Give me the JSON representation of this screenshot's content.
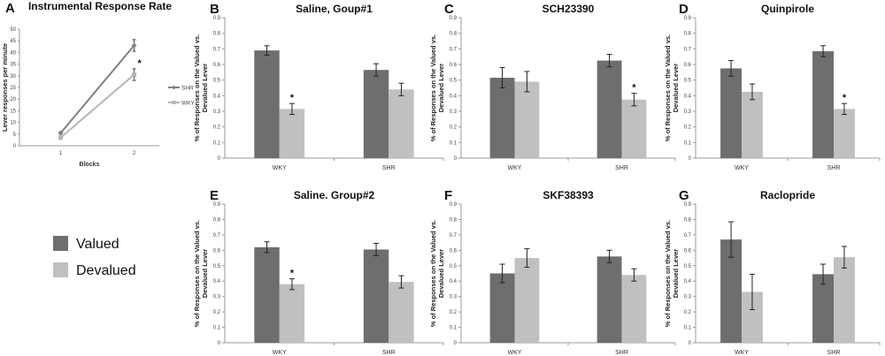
{
  "colors": {
    "valued": "#6e6e6e",
    "devalued": "#c0c0c0",
    "shr_line": "#808080",
    "wky_line": "#b5b5b5",
    "axis": "#999999"
  },
  "legend": {
    "valued": "Valued",
    "devalued": "Devalued"
  },
  "chart_data": [
    {
      "panel": "A",
      "type": "line",
      "title": "Instrumental Response Rate",
      "xlabel": "Blocks",
      "ylabel": "Lever responses per minute",
      "x": [
        "1",
        "2"
      ],
      "ylim": [
        0,
        50
      ],
      "yticks": [
        "0",
        "5",
        "10",
        "15",
        "20",
        "25",
        "30",
        "35",
        "40",
        "45",
        "50"
      ],
      "series": [
        {
          "name": "SHR",
          "values": [
            5.5,
            43
          ],
          "errors": [
            0.5,
            2.5
          ]
        },
        {
          "name": "WKY",
          "values": [
            3.5,
            30.5
          ],
          "errors": [
            0.5,
            2.5
          ]
        }
      ],
      "annotations": [
        {
          "x": "2",
          "text": "*"
        }
      ]
    },
    {
      "panel": "B",
      "type": "bar",
      "title": "Saline, Goup#1",
      "ylabel": "% of Responses on the Valued vs. Devalued Lever",
      "categories": [
        "WKY",
        "SHR"
      ],
      "ylim": [
        0,
        0.9
      ],
      "yticks": [
        "0",
        "0.1",
        "0.2",
        "0.3",
        "0.4",
        "0.5",
        "0.6",
        "0.7",
        "0.8",
        "0.9"
      ],
      "series": [
        {
          "name": "Valued",
          "values": [
            0.69,
            0.565
          ],
          "errors": [
            0.03,
            0.04
          ]
        },
        {
          "name": "Devalued",
          "values": [
            0.315,
            0.44
          ],
          "errors": [
            0.035,
            0.04
          ]
        }
      ],
      "annotations": [
        {
          "category": "WKY",
          "series": "Devalued",
          "text": "*"
        }
      ]
    },
    {
      "panel": "C",
      "type": "bar",
      "title": "SCH23390",
      "ylabel": "% of Responses on the Valued vs. Devalued Lever",
      "categories": [
        "WKY",
        "SHR"
      ],
      "ylim": [
        0,
        0.9
      ],
      "yticks": [
        "0",
        "0.1",
        "0.2",
        "0.3",
        "0.4",
        "0.5",
        "0.6",
        "0.7",
        "0.8",
        "0.9"
      ],
      "series": [
        {
          "name": "Valued",
          "values": [
            0.515,
            0.625
          ],
          "errors": [
            0.065,
            0.04
          ]
        },
        {
          "name": "Devalued",
          "values": [
            0.49,
            0.375
          ],
          "errors": [
            0.065,
            0.04
          ]
        }
      ],
      "annotations": [
        {
          "category": "SHR",
          "series": "Devalued",
          "text": "*"
        }
      ]
    },
    {
      "panel": "D",
      "type": "bar",
      "title": "Quinpirole",
      "ylabel": "% of Responses on the Valued vs. Devalued Lever",
      "categories": [
        "WKY",
        "SHR"
      ],
      "ylim": [
        0,
        0.9
      ],
      "yticks": [
        "0",
        "0.1",
        "0.2",
        "0.3",
        "0.4",
        "0.5",
        "0.6",
        "0.7",
        "0.8",
        "0.9"
      ],
      "series": [
        {
          "name": "Valued",
          "values": [
            0.575,
            0.685
          ],
          "errors": [
            0.05,
            0.035
          ]
        },
        {
          "name": "Devalued",
          "values": [
            0.425,
            0.315
          ],
          "errors": [
            0.05,
            0.035
          ]
        }
      ],
      "annotations": [
        {
          "category": "SHR",
          "series": "Devalued",
          "text": "*"
        }
      ]
    },
    {
      "panel": "E",
      "type": "bar",
      "title": "Saline. Group#2",
      "ylabel": "% of Responses on the Valued vs. Devalued Lever",
      "categories": [
        "WKY",
        "SHR"
      ],
      "ylim": [
        0,
        0.9
      ],
      "yticks": [
        "0",
        "0.1",
        "0.2",
        "0.3",
        "0.4",
        "0.5",
        "0.6",
        "0.7",
        "0.8",
        "0.9"
      ],
      "series": [
        {
          "name": "Valued",
          "values": [
            0.62,
            0.605
          ],
          "errors": [
            0.035,
            0.04
          ]
        },
        {
          "name": "Devalued",
          "values": [
            0.38,
            0.395
          ],
          "errors": [
            0.035,
            0.04
          ]
        }
      ],
      "annotations": [
        {
          "category": "WKY",
          "series": "Devalued",
          "text": "*"
        }
      ]
    },
    {
      "panel": "F",
      "type": "bar",
      "title": "SKF38393",
      "ylabel": "% of Responses on the Valued vs. Devalued Lever",
      "categories": [
        "WKY",
        "SHR"
      ],
      "ylim": [
        0,
        0.9
      ],
      "yticks": [
        "0",
        "0.1",
        "0.2",
        "0.3",
        "0.4",
        "0.5",
        "0.6",
        "0.7",
        "0.8",
        "0.9"
      ],
      "series": [
        {
          "name": "Valued",
          "values": [
            0.45,
            0.56
          ],
          "errors": [
            0.06,
            0.04
          ]
        },
        {
          "name": "Devalued",
          "values": [
            0.55,
            0.44
          ],
          "errors": [
            0.06,
            0.04
          ]
        }
      ],
      "annotations": []
    },
    {
      "panel": "G",
      "type": "bar",
      "title": "Raclopride",
      "ylabel": "% of Responses on the Valued vs. Devalued Lever",
      "categories": [
        "WKY",
        "SHR"
      ],
      "ylim": [
        0,
        0.9
      ],
      "yticks": [
        "0",
        "0.1",
        "0.2",
        "0.3",
        "0.4",
        "0.5",
        "0.6",
        "0.7",
        "0.8",
        "0.9"
      ],
      "series": [
        {
          "name": "Valued",
          "values": [
            0.67,
            0.445
          ],
          "errors": [
            0.115,
            0.065
          ]
        },
        {
          "name": "Devalued",
          "values": [
            0.33,
            0.555
          ],
          "errors": [
            0.115,
            0.07
          ]
        }
      ],
      "annotations": []
    }
  ]
}
